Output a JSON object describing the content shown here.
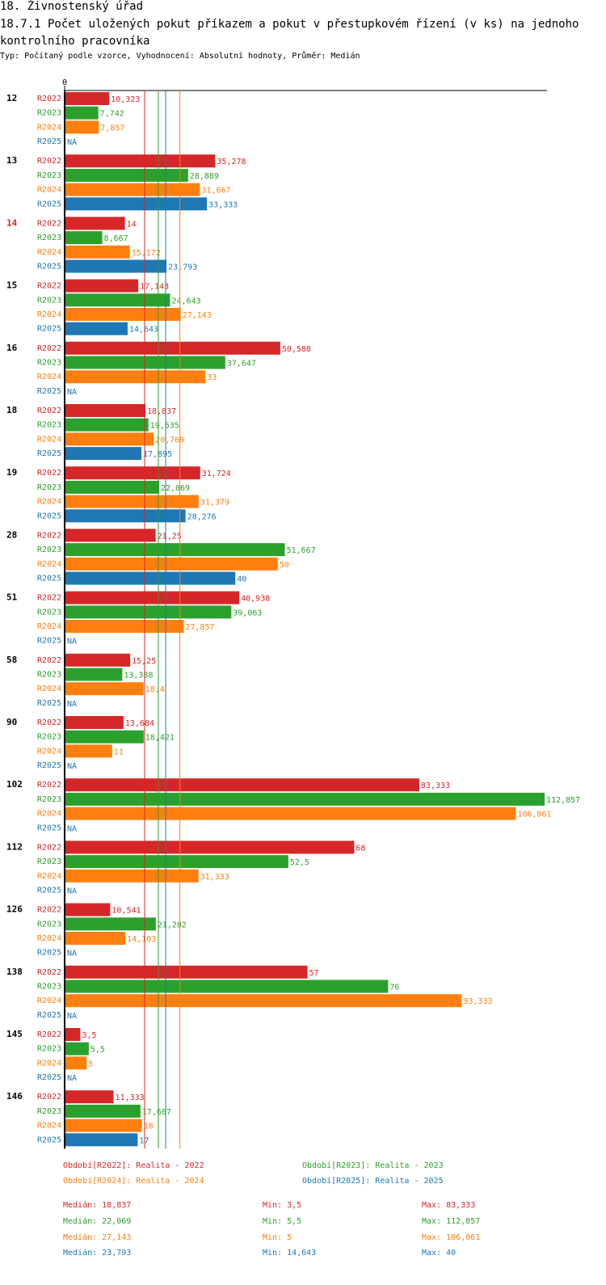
{
  "header": {
    "title": "18. Živnostenský úřad",
    "subtitle": "18.7.1 Počet uložených pokut příkazem a pokut v přestupkovém řízení (v ks) na jednoho kontrolního pracovníka",
    "typ": "Typ: Počítaný podle vzorce, Vyhodnocení: Absolutní hodnoty, Průměr: Medián"
  },
  "chart_data": {
    "type": "bar",
    "orientation": "horizontal",
    "x_tick_labels": [
      "0"
    ],
    "xlim": [
      0,
      115
    ],
    "series": [
      {
        "key": "R2022",
        "label": "Období[R2022]: Realita - 2022",
        "color": "#d62728"
      },
      {
        "key": "R2023",
        "label": "Období[R2023]: Realita - 2023",
        "color": "#2ca02c"
      },
      {
        "key": "R2024",
        "label": "Období[R2024]: Realita - 2024",
        "color": "#ff7f0e"
      },
      {
        "key": "R2025",
        "label": "Období[R2025]: Realita - 2025",
        "color": "#1f77b4"
      }
    ],
    "groups": [
      {
        "name": "12",
        "highlight": false,
        "values": [
          10.323,
          7.742,
          7.857,
          null
        ],
        "labels": [
          "10,323",
          "7,742",
          "7,857",
          "NA"
        ]
      },
      {
        "name": "13",
        "highlight": false,
        "values": [
          35.278,
          28.889,
          31.667,
          33.333
        ],
        "labels": [
          "35,278",
          "28,889",
          "31,667",
          "33,333"
        ]
      },
      {
        "name": "14",
        "highlight": true,
        "values": [
          14,
          8.667,
          15.172,
          23.793
        ],
        "labels": [
          "14",
          "8,667",
          "15,172",
          "23,793"
        ]
      },
      {
        "name": "15",
        "highlight": false,
        "values": [
          17.143,
          24.643,
          27.143,
          14.643
        ],
        "labels": [
          "17,143",
          "24,643",
          "27,143",
          "14,643"
        ]
      },
      {
        "name": "16",
        "highlight": false,
        "values": [
          50.588,
          37.647,
          33,
          null
        ],
        "labels": [
          "50,588",
          "37,647",
          "33",
          "NA"
        ]
      },
      {
        "name": "18",
        "highlight": false,
        "values": [
          18.837,
          19.535,
          20.769,
          17.895
        ],
        "labels": [
          "18,837",
          "19,535",
          "20,769",
          "17,895"
        ]
      },
      {
        "name": "19",
        "highlight": false,
        "values": [
          31.724,
          22.069,
          31.379,
          28.276
        ],
        "labels": [
          "31,724",
          "22,069",
          "31,379",
          "28,276"
        ]
      },
      {
        "name": "28",
        "highlight": false,
        "values": [
          21.25,
          51.667,
          50,
          40
        ],
        "labels": [
          "21,25",
          "51,667",
          "50",
          "40"
        ]
      },
      {
        "name": "51",
        "highlight": false,
        "values": [
          40.938,
          39.063,
          27.857,
          null
        ],
        "labels": [
          "40,938",
          "39,063",
          "27,857",
          "NA"
        ]
      },
      {
        "name": "58",
        "highlight": false,
        "values": [
          15.25,
          13.388,
          18.4,
          null
        ],
        "labels": [
          "15,25",
          "13,388",
          "18,4",
          "NA"
        ]
      },
      {
        "name": "90",
        "highlight": false,
        "values": [
          13.684,
          18.421,
          11,
          null
        ],
        "labels": [
          "13,684",
          "18,421",
          "11",
          "NA"
        ]
      },
      {
        "name": "102",
        "highlight": false,
        "values": [
          83.333,
          112.857,
          106.061,
          null
        ],
        "labels": [
          "83,333",
          "112,857",
          "106,061",
          "NA"
        ]
      },
      {
        "name": "112",
        "highlight": false,
        "values": [
          68,
          52.5,
          31.333,
          null
        ],
        "labels": [
          "68",
          "52,5",
          "31,333",
          "NA"
        ]
      },
      {
        "name": "126",
        "highlight": false,
        "values": [
          10.541,
          21.282,
          14.103,
          null
        ],
        "labels": [
          "10,541",
          "21,282",
          "14,103",
          "NA"
        ]
      },
      {
        "name": "138",
        "highlight": false,
        "values": [
          57,
          76,
          93.333,
          null
        ],
        "labels": [
          "57",
          "76",
          "93,333",
          "NA"
        ]
      },
      {
        "name": "145",
        "highlight": false,
        "values": [
          3.5,
          5.5,
          5,
          null
        ],
        "labels": [
          "3,5",
          "5,5",
          "5",
          "NA"
        ]
      },
      {
        "name": "146",
        "highlight": false,
        "values": [
          11.333,
          17.667,
          18,
          17
        ],
        "labels": [
          "11,333",
          "17,667",
          "18",
          "17"
        ]
      }
    ],
    "medians": [
      18.837,
      22.069,
      27.143,
      23.793
    ],
    "stats": [
      {
        "median": "Medián: 18,837",
        "min": "Min: 3,5",
        "max": "Max: 83,333"
      },
      {
        "median": "Medián: 22,069",
        "min": "Min: 5,5",
        "max": "Max: 112,857"
      },
      {
        "median": "Medián: 27,143",
        "min": "Min: 5",
        "max": "Max: 106,061"
      },
      {
        "median": "Medián: 23,793",
        "min": "Min: 14,643",
        "max": "Max: 40"
      }
    ]
  }
}
